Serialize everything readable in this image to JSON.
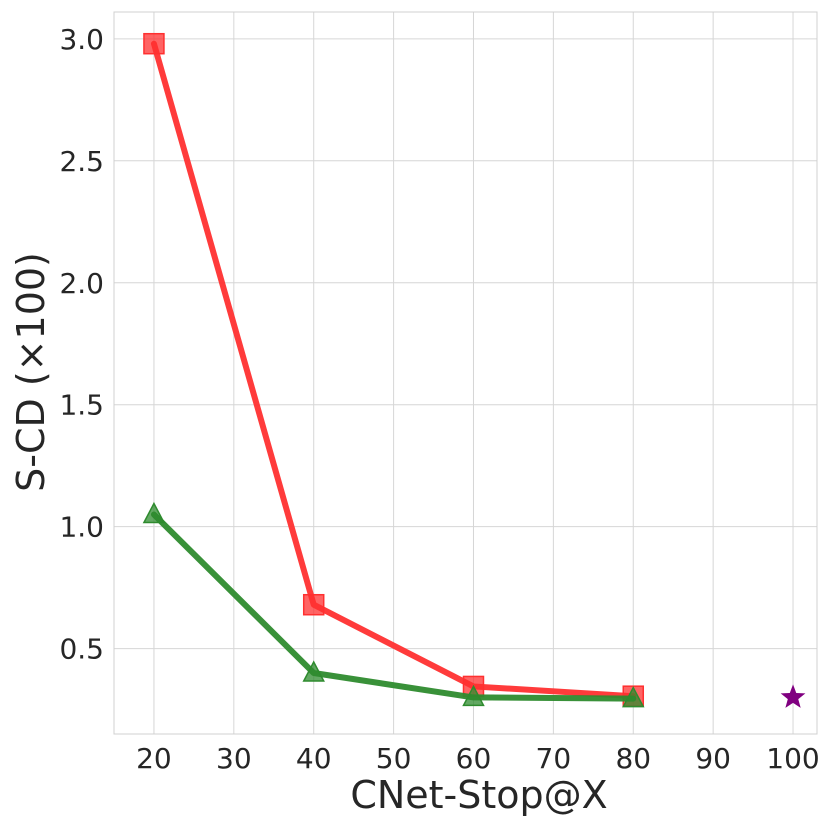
{
  "chart_data": {
    "type": "line",
    "xlabel": "CNet-Stop@X",
    "ylabel": "S-CD (×100)",
    "xlim": [
      15,
      103
    ],
    "ylim": [
      0.15,
      3.11
    ],
    "grid": true,
    "xticks": [
      20,
      30,
      40,
      50,
      60,
      70,
      80,
      90,
      100
    ],
    "yticks": [
      0.5,
      1.0,
      1.5,
      2.0,
      2.5,
      3.0
    ],
    "xtick_labels": [
      "20",
      "30",
      "40",
      "50",
      "60",
      "70",
      "80",
      "90",
      "100"
    ],
    "ytick_labels": [
      "0.5",
      "1.0",
      "1.5",
      "2.0",
      "2.5",
      "3.0"
    ],
    "series": [
      {
        "x": [
          20,
          40,
          60,
          80
        ],
        "y": [
          2.98,
          0.68,
          0.345,
          0.305
        ],
        "color": "#ff3030",
        "marker": "square"
      },
      {
        "x": [
          20,
          40,
          60,
          80
        ],
        "y": [
          1.05,
          0.4,
          0.3,
          0.295
        ],
        "color": "#2e8b2e",
        "marker": "triangle"
      },
      {
        "x": [
          100
        ],
        "y": [
          0.3
        ],
        "color": "#800080",
        "marker": "star"
      }
    ]
  }
}
